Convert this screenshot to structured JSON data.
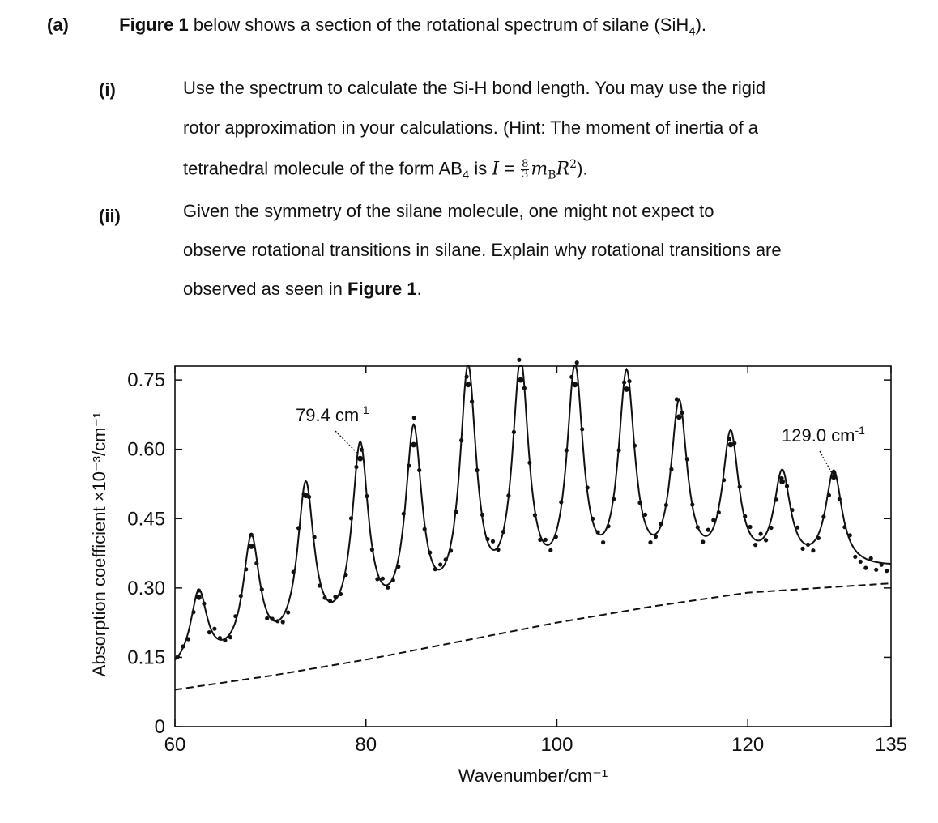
{
  "question": {
    "part_a_label": "(a)",
    "part_a_bold": "Figure 1",
    "part_a_text": " below shows a section of the rotational spectrum of silane (SiH",
    "part_a_sub": "4",
    "part_a_end": ").",
    "sub_i_label": "(i)",
    "sub_i_line1": "Use the spectrum to calculate the Si-H bond length. You may use the rigid",
    "sub_i_line2": "rotor approximation in your calculations. (Hint: The moment of inertia of a",
    "sub_i_line3a": "tetrahedral molecule of the form AB",
    "sub_i_line3_sub": "4",
    "sub_i_line3b": " is ",
    "formula_lhs": "I",
    "formula_eq": " = ",
    "formula_num": "8",
    "formula_den": "3",
    "formula_rhs_m": "m",
    "formula_rhs_sub": "B",
    "formula_rhs_R": "R",
    "formula_rhs_sup": "2",
    "sub_i_line3_end": ").",
    "sub_ii_label": "(ii)",
    "sub_ii_line1": "Given the symmetry of the silane molecule, one might not expect to",
    "sub_ii_line2": "observe rotational transitions in silane. Explain why rotational transitions are",
    "sub_ii_line3a": "observed as seen in ",
    "sub_ii_line3_bold": "Figure 1",
    "sub_ii_line3_end": "."
  },
  "chart_data": {
    "type": "line",
    "xlabel": "Wavenumber/cm⁻¹",
    "ylabel": "Absorption coefficient ×10⁻³/cm⁻¹",
    "xlim": [
      60,
      135
    ],
    "ylim": [
      0,
      0.78
    ],
    "x_ticks": [
      60,
      80,
      100,
      120,
      135
    ],
    "x_tick_labels": [
      "60",
      "80",
      "100",
      "120",
      "135"
    ],
    "y_ticks": [
      0,
      0.15,
      0.3,
      0.45,
      0.6,
      0.75
    ],
    "y_tick_labels": [
      "0",
      "0.15",
      "0.30",
      "0.45",
      "0.60",
      "0.75"
    ],
    "grid": false,
    "peaks": [
      {
        "x": 62.5,
        "y": 0.28
      },
      {
        "x": 68.0,
        "y": 0.39
      },
      {
        "x": 73.7,
        "y": 0.5
      },
      {
        "x": 79.4,
        "y": 0.58
      },
      {
        "x": 85.0,
        "y": 0.61
      },
      {
        "x": 90.7,
        "y": 0.74
      },
      {
        "x": 96.2,
        "y": 0.75
      },
      {
        "x": 101.9,
        "y": 0.74
      },
      {
        "x": 107.3,
        "y": 0.73
      },
      {
        "x": 112.8,
        "y": 0.67
      },
      {
        "x": 118.2,
        "y": 0.61
      },
      {
        "x": 123.6,
        "y": 0.53
      },
      {
        "x": 129.0,
        "y": 0.54
      }
    ],
    "series": [
      {
        "style": "solid"
      },
      {
        "style": "dots"
      },
      {
        "style": "dashed"
      }
    ],
    "baseline": {
      "x": [
        60,
        70,
        80,
        90,
        100,
        110,
        120,
        135
      ],
      "y": [
        0.08,
        0.11,
        0.145,
        0.185,
        0.225,
        0.26,
        0.29,
        0.31
      ]
    },
    "annotations": [
      {
        "text": "79.4 cm",
        "sup": "-1",
        "x": 79.4
      },
      {
        "text": "129.0 cm",
        "sup": "-1",
        "x": 129.0
      }
    ]
  }
}
